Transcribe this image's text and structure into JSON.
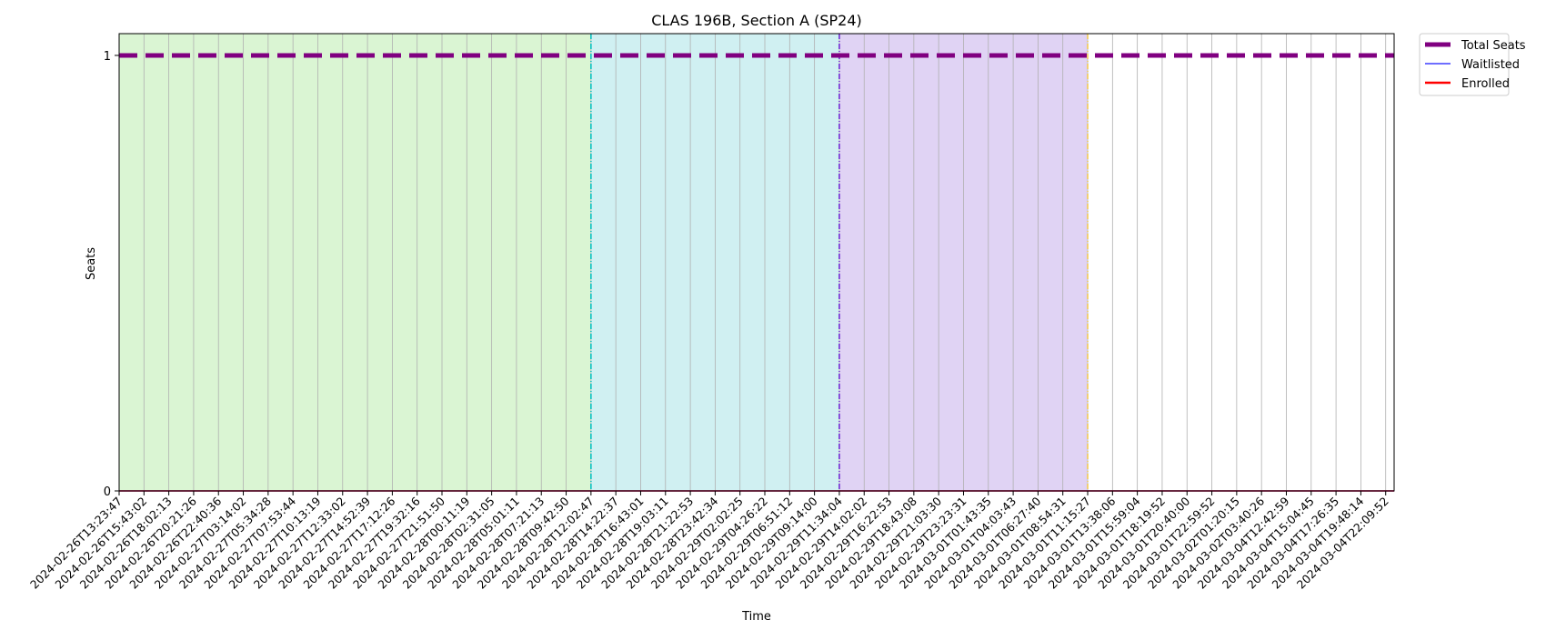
{
  "chart_data": {
    "type": "line",
    "title": "CLAS 196B, Section A (SP24)",
    "xlabel": "Time",
    "ylabel": "Seats",
    "ylim": [
      0,
      1.05
    ],
    "yticks": [
      0,
      1
    ],
    "grid": "vertical",
    "legend_position": "outside-top-right",
    "x": [
      "2024-02-26T13:23:47",
      "2024-02-26T15:43:02",
      "2024-02-26T18:02:13",
      "2024-02-26T20:21:26",
      "2024-02-26T22:40:36",
      "2024-02-27T03:14:02",
      "2024-02-27T05:34:28",
      "2024-02-27T07:53:44",
      "2024-02-27T10:13:19",
      "2024-02-27T12:33:02",
      "2024-02-27T14:52:39",
      "2024-02-27T17:12:26",
      "2024-02-27T19:32:16",
      "2024-02-27T21:51:50",
      "2024-02-28T00:11:19",
      "2024-02-28T02:31:05",
      "2024-02-28T05:01:11",
      "2024-02-28T07:21:13",
      "2024-02-28T09:42:50",
      "2024-02-28T12:02:47",
      "2024-02-28T14:22:37",
      "2024-02-28T16:43:01",
      "2024-02-28T19:03:11",
      "2024-02-28T21:22:53",
      "2024-02-28T23:42:34",
      "2024-02-29T02:02:25",
      "2024-02-29T04:26:22",
      "2024-02-29T06:51:12",
      "2024-02-29T09:14:00",
      "2024-02-29T11:34:04",
      "2024-02-29T14:02:02",
      "2024-02-29T16:22:53",
      "2024-02-29T18:43:08",
      "2024-02-29T21:03:30",
      "2024-02-29T23:23:31",
      "2024-03-01T01:43:35",
      "2024-03-01T04:03:43",
      "2024-03-01T06:27:40",
      "2024-03-01T08:54:31",
      "2024-03-01T11:15:27",
      "2024-03-01T13:38:06",
      "2024-03-01T15:59:04",
      "2024-03-01T18:19:52",
      "2024-03-01T20:40:00",
      "2024-03-01T22:59:52",
      "2024-03-02T01:20:15",
      "2024-03-02T03:40:26",
      "2024-03-04T12:42:59",
      "2024-03-04T15:04:45",
      "2024-03-04T17:26:35",
      "2024-03-04T19:48:14",
      "2024-03-04T22:09:52"
    ],
    "series": [
      {
        "name": "Total Seats",
        "color": "#800080",
        "style": "dashed",
        "value": 1
      },
      {
        "name": "Waitlisted",
        "color": "#3f3fff",
        "style": "solid",
        "value": 0
      },
      {
        "name": "Enrolled",
        "color": "#ff0000",
        "style": "solid",
        "value": 0
      }
    ],
    "shaded_regions": [
      {
        "start_index": 0,
        "end_index": 19,
        "color": "#daf5d3",
        "boundary_color": "#00bfbf"
      },
      {
        "start_index": 19,
        "end_index": 29,
        "color": "#d0f0f2",
        "boundary_color": "#6a1fd0"
      },
      {
        "start_index": 29,
        "end_index": 39,
        "color": "#e0d3f4",
        "boundary_color": "#f2c94c"
      }
    ]
  }
}
